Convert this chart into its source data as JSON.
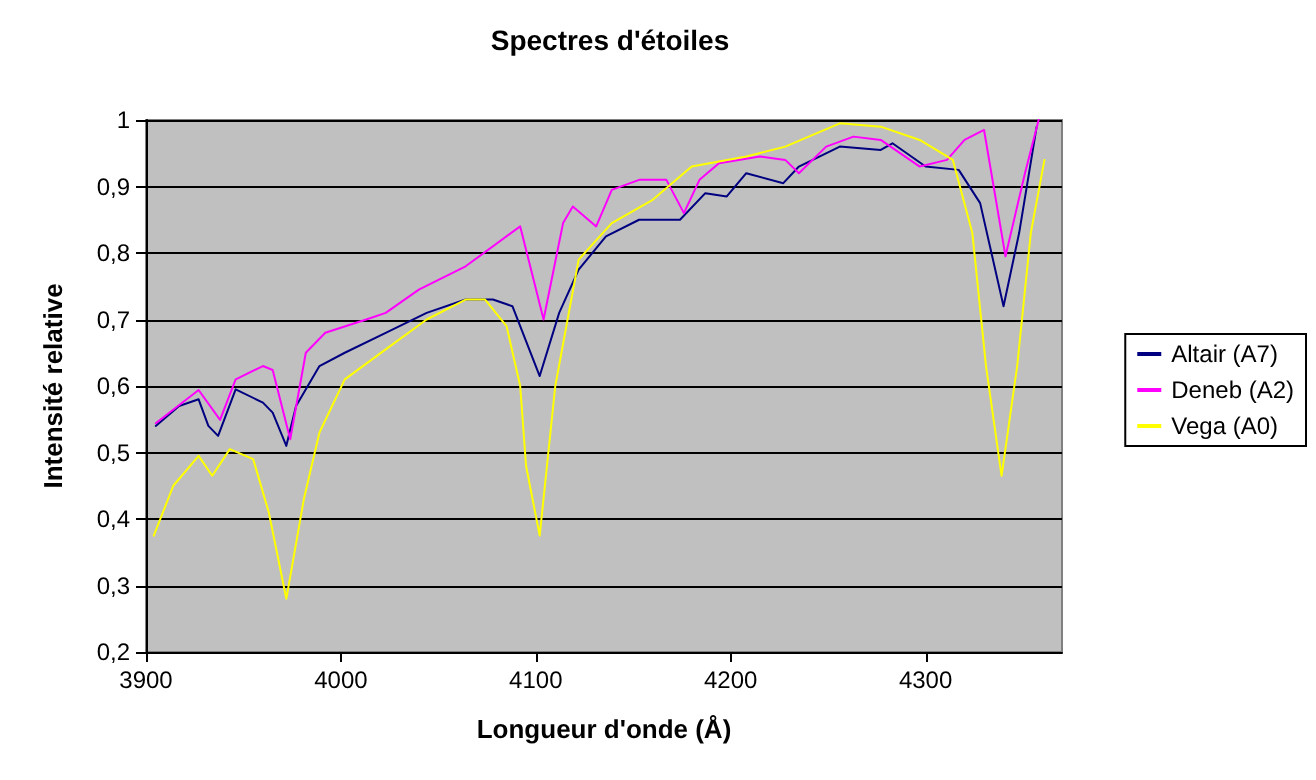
{
  "chart_data": {
    "type": "line",
    "title": "Spectres d'étoiles",
    "xlabel": "Longueur d'onde (Å)",
    "ylabel": "Intensité relative",
    "xlim": [
      3900,
      4370
    ],
    "xticks": [
      3900,
      4000,
      4100,
      4200,
      4300
    ],
    "ylim": [
      0.2,
      1
    ],
    "yticks": [
      {
        "value": 0.2,
        "label": "0,2"
      },
      {
        "value": 0.3,
        "label": "0,3"
      },
      {
        "value": 0.4,
        "label": "0,4"
      },
      {
        "value": 0.5,
        "label": "0,5"
      },
      {
        "value": 0.6,
        "label": "0,6"
      },
      {
        "value": 0.7,
        "label": "0,7"
      },
      {
        "value": 0.8,
        "label": "0,8"
      },
      {
        "value": 0.9,
        "label": "0,9"
      },
      {
        "value": 1,
        "label": "1"
      }
    ],
    "grid": "y",
    "legend": "right",
    "marker": "none",
    "line_style": "solid",
    "series": [
      {
        "name": "Altair (A7)",
        "color": "#000080",
        "x": [
          3905,
          3917,
          3927,
          3932,
          3937,
          3946,
          3960,
          3965,
          3972,
          3977,
          3989,
          4002,
          4023,
          4044,
          4064,
          4078,
          4088,
          4102,
          4112,
          4122,
          4136,
          4153,
          4174,
          4187,
          4198,
          4208,
          4227,
          4235,
          4256,
          4277,
          4283,
          4300,
          4317,
          4328,
          4340,
          4348,
          4357
        ],
        "values": [
          0.54,
          0.57,
          0.58,
          0.54,
          0.525,
          0.595,
          0.575,
          0.56,
          0.51,
          0.57,
          0.63,
          0.65,
          0.68,
          0.71,
          0.73,
          0.73,
          0.72,
          0.615,
          0.71,
          0.775,
          0.825,
          0.85,
          0.85,
          0.89,
          0.885,
          0.92,
          0.905,
          0.93,
          0.96,
          0.955,
          0.965,
          0.93,
          0.925,
          0.875,
          0.72,
          0.83,
          0.99
        ]
      },
      {
        "name": "Deneb (A2)",
        "color": "#ff00ff",
        "x": [
          3905,
          3927,
          3938,
          3946,
          3960,
          3965,
          3974,
          3982,
          3992,
          4013,
          4023,
          4040,
          4064,
          4092,
          4104,
          4114,
          4119,
          4131,
          4139,
          4153,
          4167,
          4176,
          4184,
          4194,
          4215,
          4228,
          4235,
          4249,
          4263,
          4277,
          4297,
          4311,
          4320,
          4330,
          4341,
          4351,
          4358
        ],
        "values": [
          0.544,
          0.594,
          0.549,
          0.61,
          0.63,
          0.624,
          0.52,
          0.65,
          0.68,
          0.7,
          0.71,
          0.745,
          0.78,
          0.84,
          0.7,
          0.845,
          0.87,
          0.84,
          0.895,
          0.91,
          0.91,
          0.86,
          0.91,
          0.935,
          0.945,
          0.94,
          0.92,
          0.96,
          0.975,
          0.97,
          0.93,
          0.94,
          0.97,
          0.985,
          0.795,
          0.92,
          1
        ]
      },
      {
        "name": "Vega (A0)",
        "color": "#ffff00",
        "x": [
          3904,
          3914,
          3927,
          3934,
          3943,
          3955,
          3963,
          3972,
          3981,
          3989,
          4002,
          4023,
          4044,
          4064,
          4074,
          4085,
          4092,
          4095,
          4102,
          4110,
          4122,
          4139,
          4160,
          4180,
          4208,
          4228,
          4256,
          4277,
          4297,
          4314,
          4324,
          4331,
          4339,
          4347,
          4354,
          4361
        ],
        "values": [
          0.375,
          0.45,
          0.495,
          0.465,
          0.505,
          0.49,
          0.41,
          0.28,
          0.43,
          0.53,
          0.61,
          0.655,
          0.7,
          0.73,
          0.73,
          0.69,
          0.6,
          0.48,
          0.375,
          0.6,
          0.79,
          0.845,
          0.88,
          0.93,
          0.945,
          0.96,
          0.995,
          0.99,
          0.97,
          0.94,
          0.83,
          0.63,
          0.465,
          0.63,
          0.83,
          0.94
        ]
      }
    ]
  }
}
